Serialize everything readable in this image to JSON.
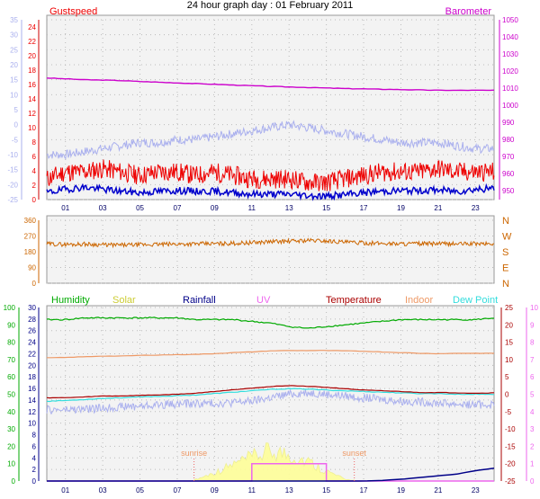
{
  "title": "24 hour graph day : 01 February 2011",
  "x_ticks": [
    "01",
    "03",
    "05",
    "07",
    "09",
    "11",
    "13",
    "15",
    "17",
    "19",
    "21",
    "23"
  ],
  "colors": {
    "gust": "#ee0000",
    "wind": "#0000cc",
    "baro": "#cc00cc",
    "temp_left": "#aab0ee",
    "dir": "#cc6600",
    "humidity": "#00aa00",
    "solar": "#cccc33",
    "rainfall": "#000088",
    "uv": "#ee66ee",
    "temperature": "#aa0000",
    "indoor": "#ee9966",
    "dewpoint": "#33dddd",
    "rainaxis": "#000088",
    "uvaxis": "#ee66ee",
    "grid": "#bbbbbb"
  },
  "chart_data": [
    {
      "type": "line",
      "title": "",
      "legend": {
        "left": "Gustspeed",
        "right": "Barometer"
      },
      "left_axis_1": {
        "ticks": [
          "35",
          "30",
          "25",
          "20",
          "15",
          "10",
          "5",
          "0",
          "-5",
          "-10",
          "-15",
          "-20",
          "-25"
        ],
        "ylim": [
          -25,
          35
        ]
      },
      "left_axis_2": {
        "ticks": [
          "24",
          "22",
          "20",
          "18",
          "16",
          "14",
          "12",
          "10",
          "8",
          "6",
          "4",
          "2",
          "0"
        ],
        "ylim": [
          0,
          25
        ]
      },
      "right_axis": {
        "ticks": [
          "1050",
          "1040",
          "1030",
          "1020",
          "1010",
          "1000",
          "990",
          "980",
          "970",
          "960",
          "950"
        ],
        "ylim": [
          948,
          1050
        ]
      },
      "x": [
        0,
        1,
        2,
        3,
        4,
        5,
        6,
        7,
        8,
        9,
        10,
        11,
        12,
        13,
        14,
        15,
        16,
        17,
        18,
        19,
        20,
        21,
        22,
        23,
        24
      ],
      "series": [
        {
          "name": "Barometer",
          "axis": "right",
          "values": [
            1017,
            1016.5,
            1016,
            1015.8,
            1015.5,
            1015,
            1014.6,
            1014.2,
            1013.8,
            1013.4,
            1013,
            1012.6,
            1012.2,
            1011.9,
            1011.6,
            1011.3,
            1011,
            1010.8,
            1010.6,
            1010.4,
            1010.2,
            1010,
            1010,
            1010,
            1010
          ]
        },
        {
          "name": "",
          "axis": "left_1",
          "values": [
            -10,
            -10,
            -9,
            -8,
            -7,
            -6,
            -6,
            -5,
            -5,
            -4,
            -3,
            -2,
            -1,
            0,
            -1,
            -2,
            -3,
            -4,
            -5,
            -6,
            -6,
            -6,
            -7,
            -8,
            -8
          ]
        },
        {
          "name": "Gustspeed",
          "axis": "left_2",
          "values": [
            3,
            4,
            4,
            4.5,
            4,
            3.5,
            4,
            4,
            3.5,
            4,
            3.5,
            3,
            3,
            3,
            2.5,
            2.5,
            3,
            3.5,
            4,
            4,
            4,
            4.5,
            4,
            4,
            4
          ]
        },
        {
          "name": "",
          "axis": "left_2",
          "values": [
            1,
            1.5,
            1.8,
            1.5,
            1.2,
            1,
            1.2,
            1.3,
            1.2,
            1.2,
            1,
            0.8,
            0.8,
            0.8,
            0.6,
            0.5,
            0.7,
            1,
            1.2,
            1.3,
            1.3,
            1.4,
            1.2,
            1.5,
            1.6
          ]
        }
      ]
    },
    {
      "type": "line",
      "title": "",
      "left_axis": {
        "ticks": [
          "360",
          "270",
          "180",
          "90",
          "0"
        ],
        "ylim": [
          0,
          360
        ]
      },
      "right_labels": [
        "N",
        "W",
        "S",
        "E",
        "N"
      ],
      "x": [
        0,
        1,
        2,
        3,
        4,
        5,
        6,
        7,
        8,
        9,
        10,
        11,
        12,
        13,
        14,
        15,
        16,
        17,
        18,
        19,
        20,
        21,
        22,
        23,
        24
      ],
      "series": [
        {
          "name": "",
          "values": [
            225,
            222,
            224,
            220,
            218,
            220,
            222,
            224,
            225,
            226,
            228,
            232,
            238,
            240,
            245,
            242,
            235,
            230,
            228,
            226,
            226,
            226,
            225,
            226,
            225
          ]
        }
      ]
    },
    {
      "type": "line",
      "title": "",
      "legend": [
        "Humidity",
        "Solar",
        "Rainfall",
        "UV",
        "Temperature",
        "Indoor",
        "Dew Point"
      ],
      "axis_humidity": {
        "ticks": [
          "100",
          "90",
          "80",
          "70",
          "60",
          "50",
          "40",
          "30",
          "20",
          "10",
          "0"
        ],
        "ylim": [
          0,
          100
        ]
      },
      "axis_rain": {
        "ticks": [
          "30",
          "28",
          "26",
          "24",
          "22",
          "20",
          "18",
          "16",
          "14",
          "12",
          "10",
          "8",
          "6",
          "4",
          "2",
          "0"
        ],
        "ylim": [
          0,
          30
        ]
      },
      "axis_temp": {
        "ticks": [
          "25",
          "20",
          "15",
          "10",
          "5",
          "0",
          "-5",
          "-10",
          "-15",
          "-20",
          "-25"
        ],
        "ylim": [
          -25,
          25
        ]
      },
      "axis_uv": {
        "ticks": [
          "10",
          "9",
          "8",
          "7",
          "6",
          "5",
          "4",
          "3",
          "2",
          "1",
          "0"
        ],
        "ylim": [
          0,
          10
        ]
      },
      "annotations": [
        {
          "label": "sunrise",
          "x": 7.9
        },
        {
          "label": "sunset",
          "x": 16.5
        }
      ],
      "x_tick_override": {
        "16": "sunset"
      },
      "x": [
        0,
        1,
        2,
        3,
        4,
        5,
        6,
        7,
        8,
        9,
        10,
        11,
        12,
        13,
        14,
        15,
        16,
        17,
        18,
        19,
        20,
        21,
        22,
        23,
        24
      ],
      "series": [
        {
          "name": "Humidity",
          "axis": "humidity",
          "values": [
            93,
            93,
            94,
            94,
            94,
            94,
            94,
            94,
            93,
            93,
            93,
            92,
            91,
            89,
            88,
            89,
            90,
            91,
            92,
            93,
            93,
            93,
            93,
            93,
            94
          ]
        },
        {
          "name": "Indoor",
          "axis": "temp",
          "values": [
            10.5,
            10.6,
            10.8,
            11,
            11,
            11.2,
            11.3,
            11.4,
            11.5,
            11.7,
            12,
            12.2,
            12.5,
            12.6,
            12.6,
            12.6,
            12.5,
            12.4,
            12.2,
            12.0,
            11.8,
            11.7,
            11.8,
            11.8,
            11.8
          ]
        },
        {
          "name": "Temperature",
          "axis": "temp",
          "values": [
            -1,
            -1,
            -0.8,
            -0.5,
            -0.5,
            -0.3,
            -0.2,
            0,
            0.3,
            0.8,
            1.3,
            1.8,
            2.2,
            2.5,
            2.3,
            2,
            1.6,
            1.2,
            1,
            0.8,
            0.5,
            0.5,
            0.4,
            0.3,
            0.4
          ]
        },
        {
          "name": "Dew Point",
          "axis": "temp",
          "values": [
            -2,
            -1.8,
            -1.5,
            -1.2,
            -1,
            -0.8,
            -0.6,
            -0.4,
            -0.2,
            0.2,
            0.6,
            1,
            1.4,
            1.6,
            1.5,
            1.2,
            1,
            0.8,
            0.6,
            0.4,
            0.2,
            0.2,
            0,
            0,
            0
          ]
        },
        {
          "name": "",
          "axis": "temp",
          "values": [
            -4.5,
            -4.5,
            -4.3,
            -4,
            -3.6,
            -3.4,
            -3,
            -2.8,
            -2.7,
            -2.6,
            -2.4,
            -2,
            -1,
            0,
            0.5,
            0,
            -0.5,
            -1,
            -1.5,
            -2,
            -2.2,
            -2.5,
            -2.8,
            -3,
            -3
          ]
        },
        {
          "name": "Solar",
          "axis": "uv",
          "values": [
            0,
            0,
            0,
            0,
            0,
            0,
            0,
            0,
            0.1,
            0.5,
            1.0,
            1.4,
            1.8,
            1.6,
            1.2,
            0.6,
            0.1,
            0,
            0,
            0,
            0,
            0,
            0,
            0,
            0
          ]
        },
        {
          "name": "UV",
          "axis": "uv",
          "values": [
            0,
            0,
            0,
            0,
            0,
            0,
            0,
            0,
            0,
            0,
            0,
            1,
            1,
            1,
            1,
            0,
            0,
            0,
            0,
            0,
            0,
            0,
            0,
            0,
            0
          ]
        },
        {
          "name": "Rainfall",
          "axis": "rain",
          "values": [
            0,
            0,
            0,
            0,
            0,
            0,
            0,
            0,
            0,
            0,
            0,
            0,
            0,
            0,
            0,
            0,
            0,
            0,
            0.1,
            0.3,
            0.6,
            0.9,
            1.2,
            1.8,
            2.2
          ]
        }
      ]
    }
  ]
}
